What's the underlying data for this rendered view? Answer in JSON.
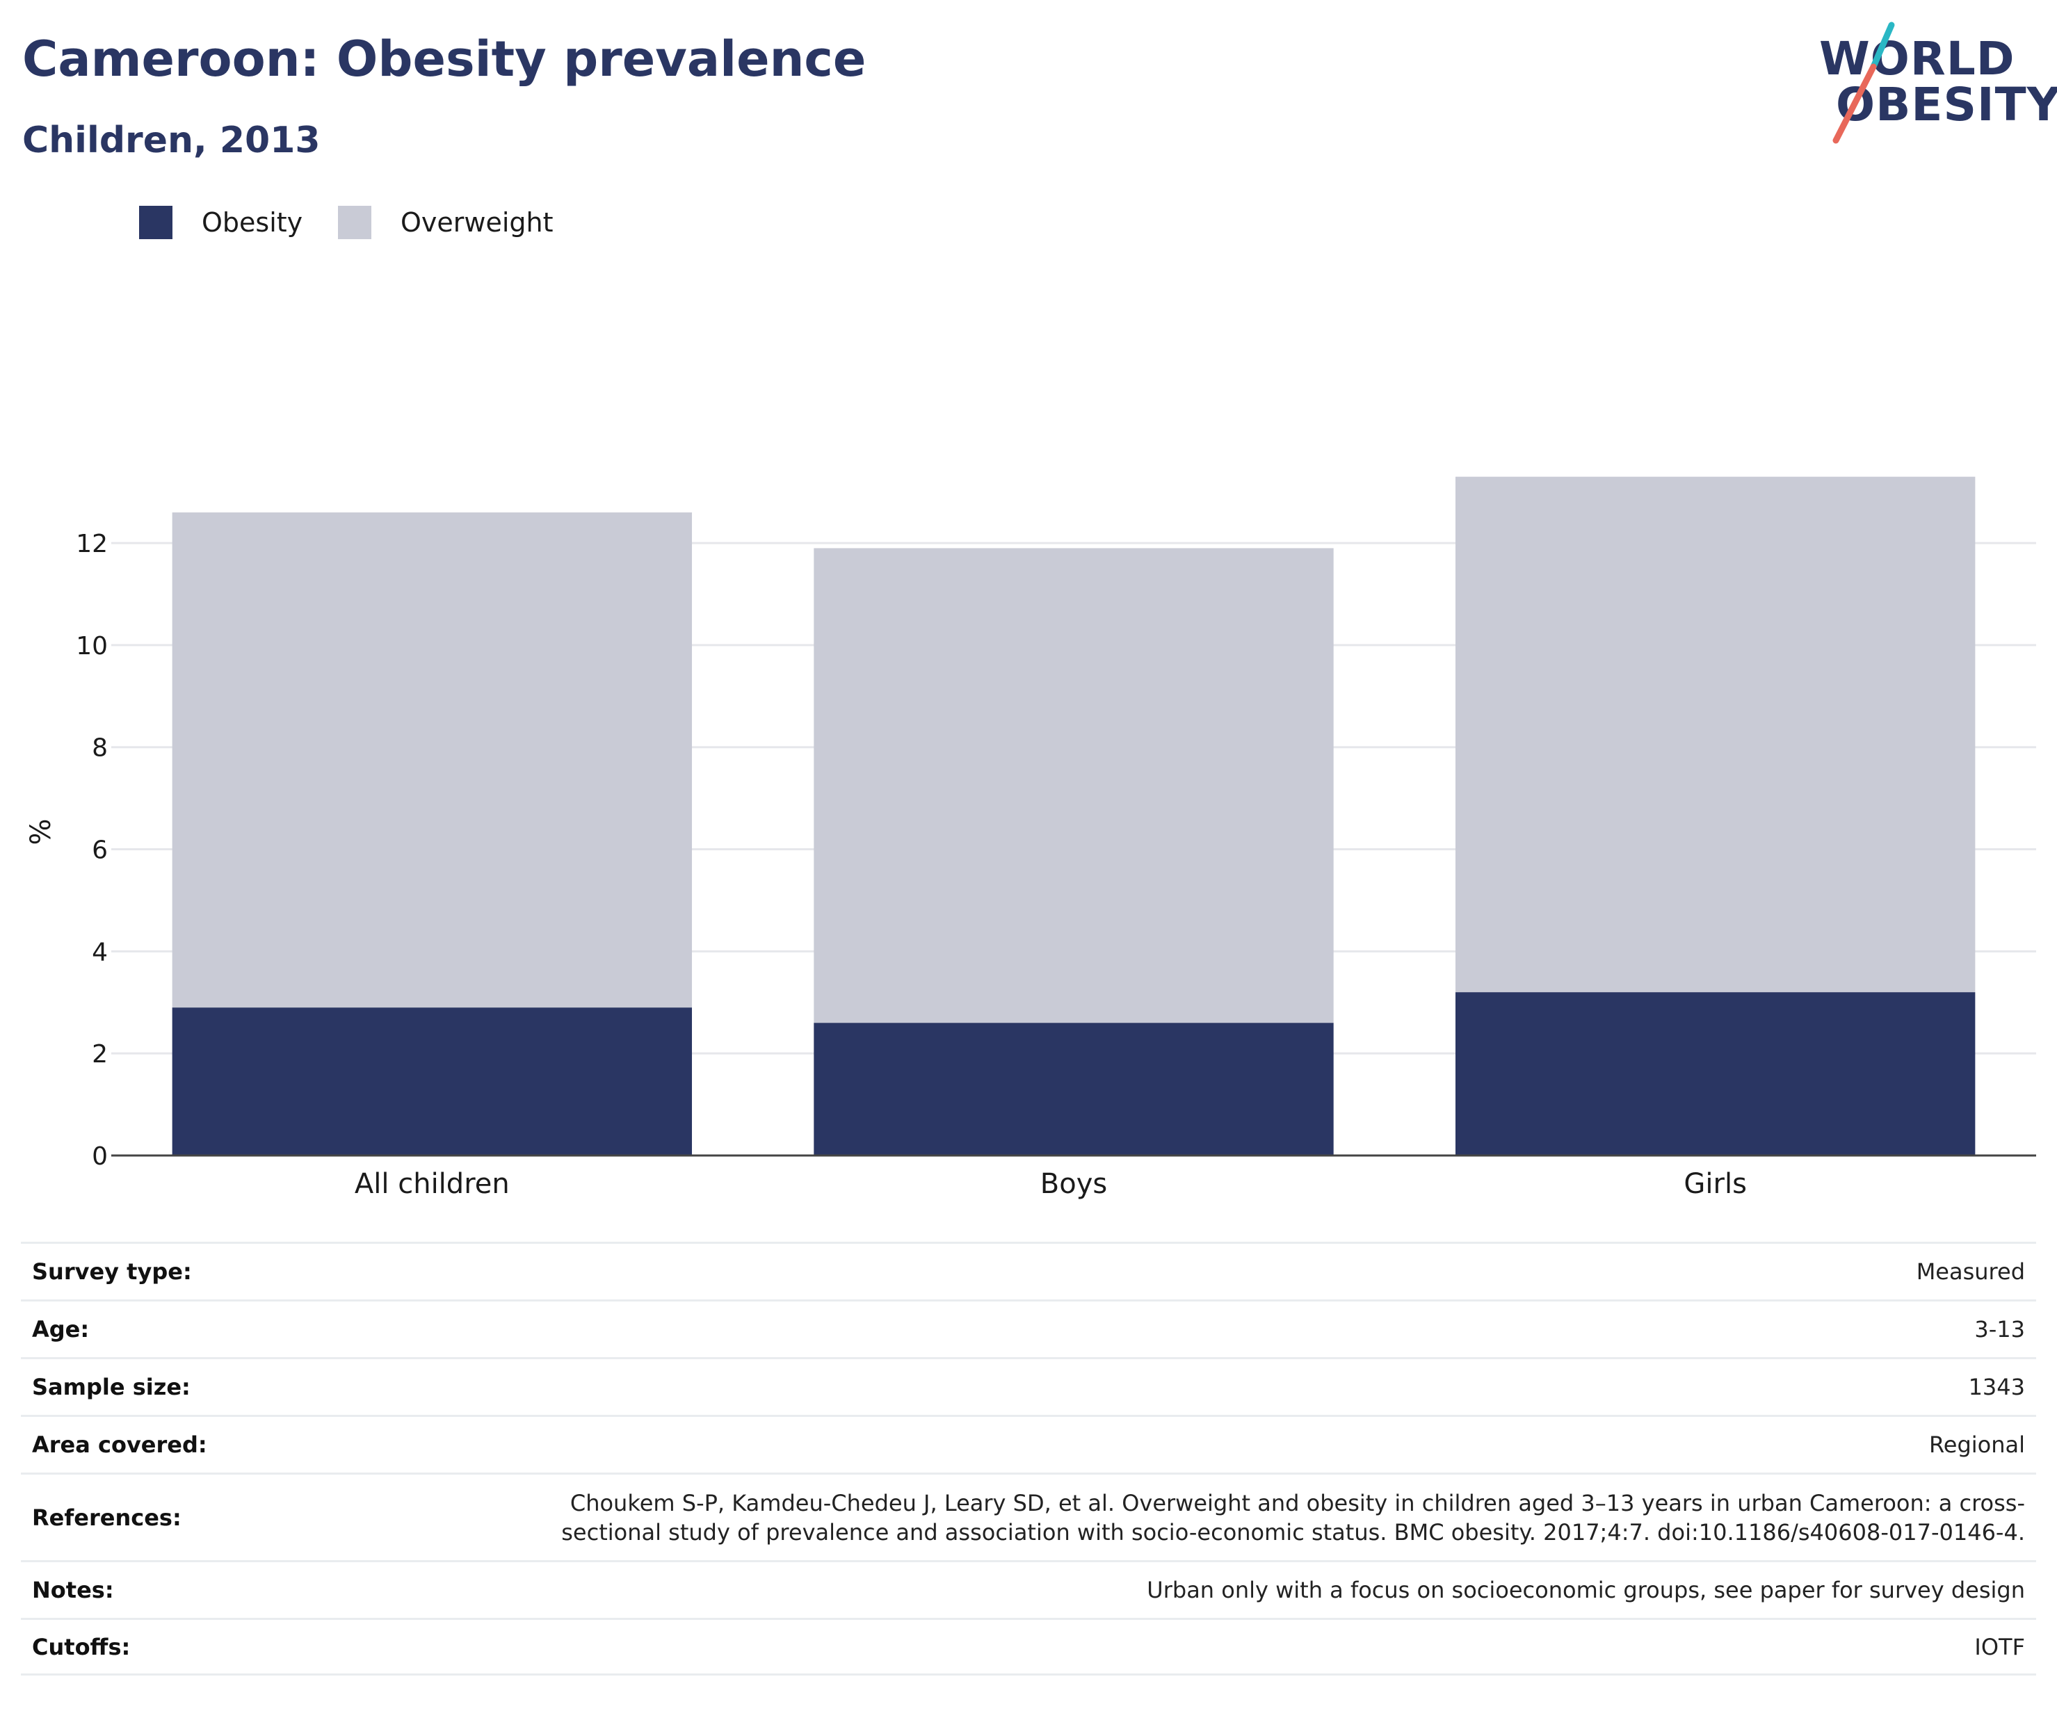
{
  "header": {
    "title": "Cameroon: Obesity prevalence",
    "subtitle": "Children, 2013"
  },
  "logo": {
    "line1": "WORLD",
    "line2": "OBESITY",
    "accent_colors": [
      "#2ab7c4",
      "#e8685a"
    ]
  },
  "chart_data": {
    "type": "bar",
    "stacked": true,
    "categories": [
      "All children",
      "Boys",
      "Girls"
    ],
    "series": [
      {
        "name": "Obesity",
        "values": [
          2.9,
          2.6,
          3.2
        ],
        "color": "#2a3663"
      },
      {
        "name": "Overweight",
        "values": [
          9.7,
          9.3,
          10.1
        ],
        "color": "#c9cbd6"
      }
    ],
    "ylabel": "%",
    "xlabel": "",
    "ylim": [
      0,
      13.5
    ],
    "yticks": [
      0,
      2,
      4,
      6,
      8,
      10,
      12
    ],
    "grid": true,
    "legend_position": "top-left"
  },
  "metadata": [
    {
      "label": "Survey type:",
      "value": "Measured"
    },
    {
      "label": "Age:",
      "value": "3-13"
    },
    {
      "label": "Sample size:",
      "value": "1343"
    },
    {
      "label": "Area covered:",
      "value": "Regional"
    },
    {
      "label": "References:",
      "value": "Choukem S-P, Kamdeu-Chedeu J, Leary SD, et al. Overweight and obesity in children aged 3–13 years in urban Cameroon: a cross-sectional study of prevalence and association with socio-economic status. BMC obesity. 2017;4:7. doi:10.1186/s40608-017-0146-4."
    },
    {
      "label": "Notes:",
      "value": "Urban only with a focus on socioeconomic groups, see paper for survey design"
    },
    {
      "label": "Cutoffs:",
      "value": "IOTF"
    }
  ]
}
